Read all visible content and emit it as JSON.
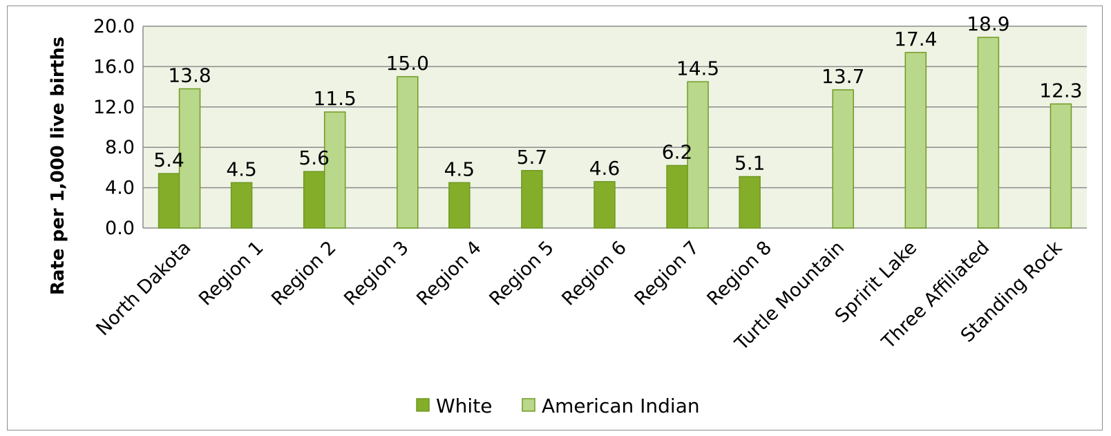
{
  "chart_data": {
    "type": "bar",
    "title": "",
    "xlabel": "",
    "ylabel": "Rate per 1,000 live births",
    "ylim": [
      0,
      20
    ],
    "yticks": [
      "0.0",
      "4.0",
      "8.0",
      "12.0",
      "16.0",
      "20.0"
    ],
    "ytick_values": [
      0,
      4,
      8,
      12,
      16,
      20
    ],
    "grid": true,
    "legend_position": "bottom",
    "categories": [
      "North Dakota",
      "Region 1",
      "Region 2",
      "Region 3",
      "Region 4",
      "Region 5",
      "Region 6",
      "Region 7",
      "Region 8",
      "Turtle Mountain",
      "Spririt Lake",
      "Three Affiliated",
      "Standing Rock"
    ],
    "series": [
      {
        "name": "White",
        "color": "#84ad2a",
        "values": [
          5.4,
          4.5,
          5.6,
          null,
          4.5,
          5.7,
          4.6,
          6.2,
          5.1,
          null,
          null,
          null,
          null
        ],
        "labels": [
          "5.4",
          "4.5",
          "5.6",
          "",
          "4.5",
          "5.7",
          "4.6",
          "6.2",
          "5.1",
          "",
          "",
          "",
          ""
        ]
      },
      {
        "name": "American Indian",
        "color": "#b9d88b",
        "values": [
          13.8,
          null,
          11.5,
          15.0,
          null,
          null,
          null,
          14.5,
          null,
          13.7,
          17.4,
          18.9,
          12.3
        ],
        "labels": [
          "13.8",
          "",
          "11.5",
          "15.0",
          "",
          "",
          "",
          "14.5",
          "",
          "13.7",
          "17.4",
          "18.9",
          "12.3"
        ]
      }
    ],
    "plot_background": "#eef3e4",
    "gridline_color": "#8c8c8c",
    "bar_stroke": "#6f9a22"
  }
}
